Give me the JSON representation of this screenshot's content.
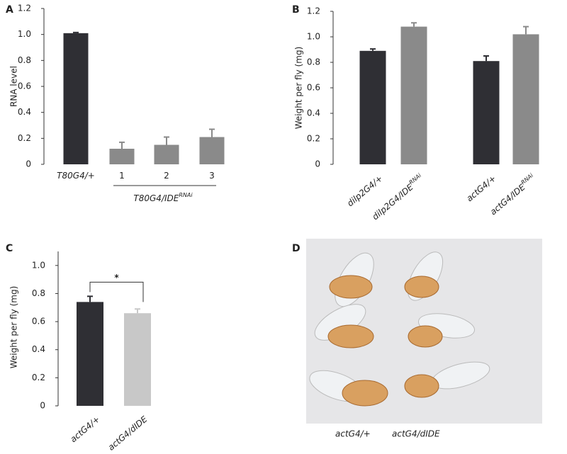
{
  "chart_data": [
    {
      "type": "bar",
      "panel": "A",
      "y_label": "RNA level",
      "categories": [
        "T80G4/+",
        "1",
        "2",
        "3"
      ],
      "values": [
        1.01,
        0.12,
        0.15,
        0.21
      ],
      "errors": [
        0.005,
        0.05,
        0.06,
        0.06
      ],
      "colors": [
        "#2f2f34",
        "#8a8a8a",
        "#8a8a8a",
        "#8a8a8a"
      ],
      "group_label": "T80G4/IDE",
      "group_label_superscript": "RNAi",
      "ylim": [
        0,
        1.2
      ],
      "yticks": [
        0,
        0.2,
        0.4,
        0.6,
        0.8,
        {
          "value": 1,
          "label": "1.0"
        },
        1.2
      ]
    },
    {
      "type": "bar",
      "panel": "B",
      "y_label": "Weight per fly (mg)",
      "categories": [
        "dilp2G4/+",
        "dilp2G4/IDE",
        "actG4/+",
        "actG4/IDE"
      ],
      "category_superscripts": [
        null,
        "RNAi",
        null,
        "RNAi"
      ],
      "values": [
        0.89,
        1.08,
        0.81,
        1.02
      ],
      "errors": [
        0.015,
        0.03,
        0.04,
        0.06
      ],
      "colors": [
        "#2f2f34",
        "#8a8a8a",
        "#2f2f34",
        "#8a8a8a"
      ],
      "ylim": [
        0,
        1.2
      ],
      "yticks": [
        0,
        0.2,
        0.4,
        0.6,
        0.8,
        {
          "value": 1,
          "label": "1.0"
        },
        1.2
      ]
    },
    {
      "type": "bar",
      "panel": "C",
      "y_label": "Weight per fly (mg)",
      "categories": [
        "actG4/+",
        "actG4/dIDE"
      ],
      "values": [
        0.74,
        0.66
      ],
      "errors": [
        0.04,
        0.03
      ],
      "colors": [
        "#2f2f34",
        "#c8c8c8"
      ],
      "significance": "*",
      "ylim": [
        0,
        1.1
      ],
      "yticks": [
        0,
        0.2,
        0.4,
        0.6,
        0.8,
        {
          "value": 1,
          "label": "1.0"
        }
      ]
    }
  ],
  "photo": {
    "panel": "D",
    "captions": [
      "actG4/+",
      "actG4/dIDE"
    ]
  }
}
